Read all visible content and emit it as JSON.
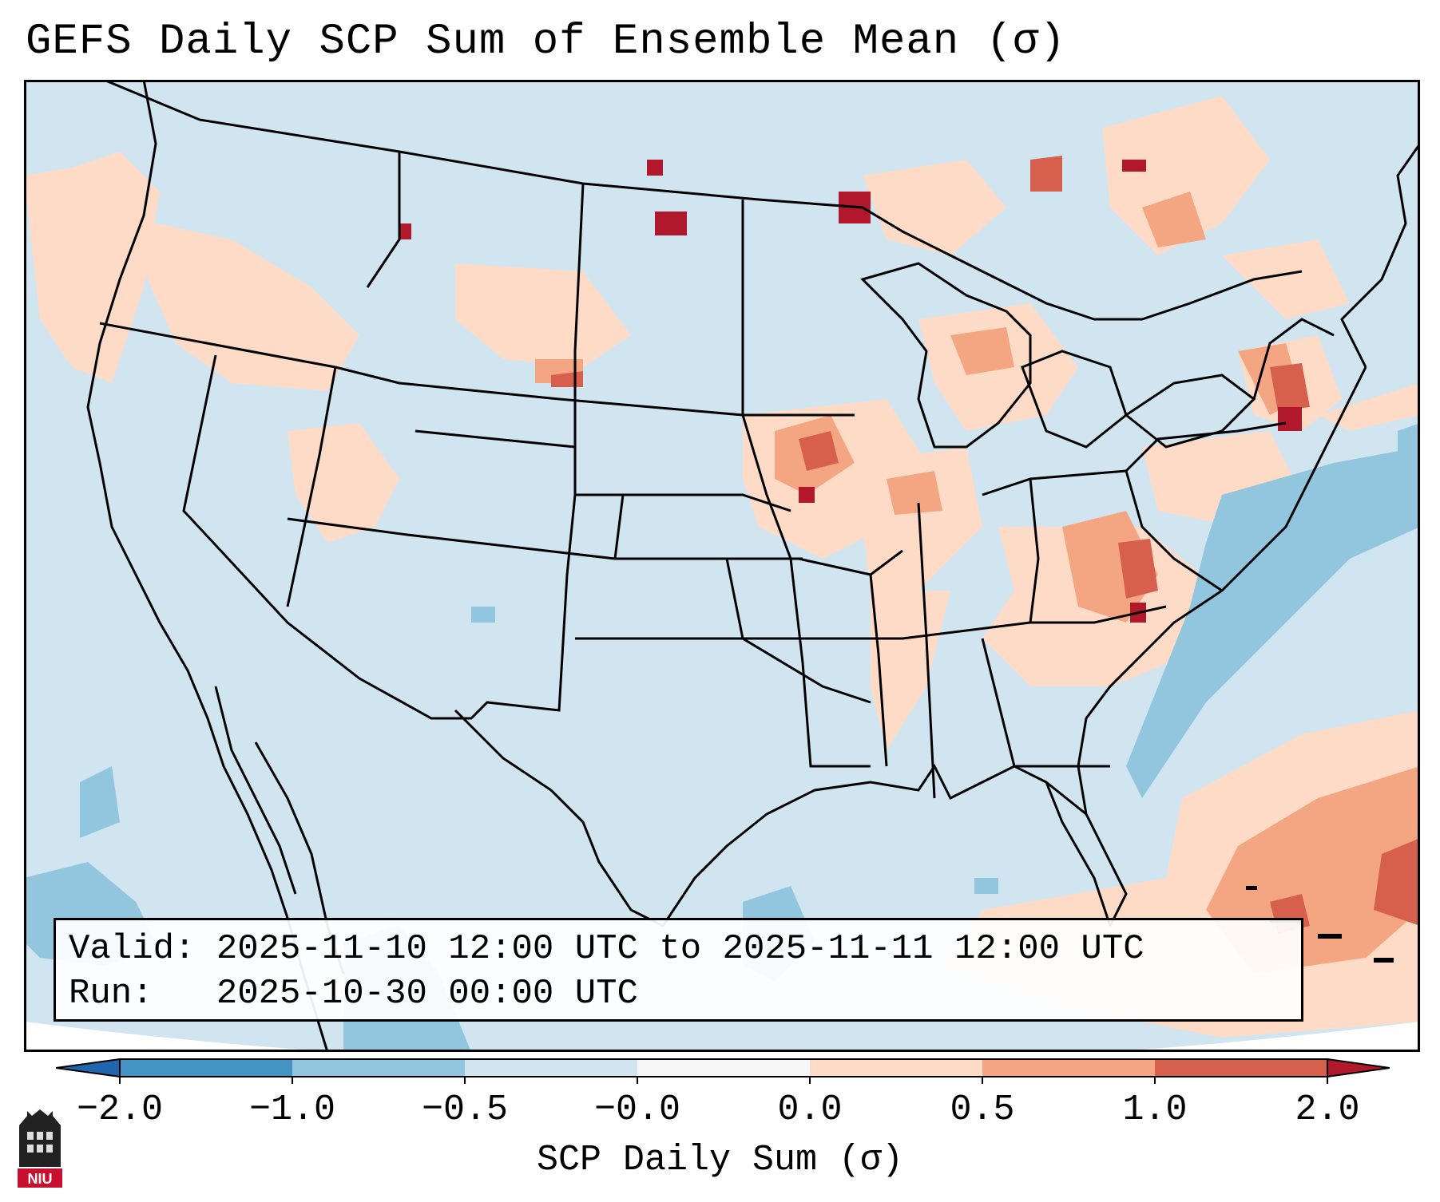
{
  "title": "GEFS Daily SCP Sum of Ensemble Mean (σ)",
  "info": {
    "valid_label": "Valid:",
    "valid_value": "2025-11-10 12:00 UTC to 2025-11-11 12:00 UTC",
    "run_label": "Run:",
    "run_value": "2025-10-30 00:00 UTC"
  },
  "colorbar": {
    "label": "SCP Daily Sum (σ)",
    "tick_labels": [
      "−2.0",
      "−1.0",
      "−0.5",
      "−0.0",
      "0.0",
      "0.5",
      "1.0",
      "2.0"
    ],
    "bins": [
      {
        "from": -99,
        "to": -2.0,
        "color": "#2166ac"
      },
      {
        "from": -2.0,
        "to": -1.0,
        "color": "#4393c3"
      },
      {
        "from": -1.0,
        "to": -0.5,
        "color": "#92c5de"
      },
      {
        "from": -0.5,
        "to": -0.0,
        "color": "#d1e5f0"
      },
      {
        "from": -0.0,
        "to": 0.0,
        "color": "#f7f7f7"
      },
      {
        "from": 0.0,
        "to": 0.5,
        "color": "#fddbc7"
      },
      {
        "from": 0.5,
        "to": 1.0,
        "color": "#f4a582"
      },
      {
        "from": 1.0,
        "to": 2.0,
        "color": "#d6604d"
      },
      {
        "from": 2.0,
        "to": 99,
        "color": "#b2182b"
      }
    ]
  },
  "logo": {
    "text": "NIU",
    "color": "#c8102e"
  }
}
